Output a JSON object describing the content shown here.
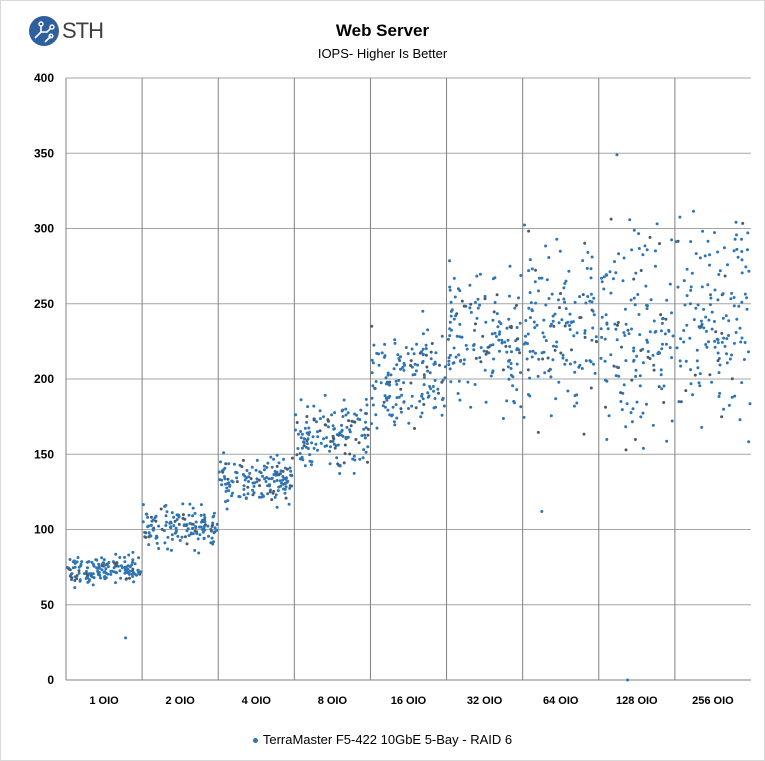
{
  "logo": {
    "text": "STH"
  },
  "chart_data": {
    "type": "scatter",
    "title": "Web Server",
    "subtitle": "IOPS- Higher Is Better",
    "xlabel": "",
    "ylabel": "",
    "ylim": [
      0,
      400
    ],
    "yticks": [
      0,
      50,
      100,
      150,
      200,
      250,
      300,
      350,
      400
    ],
    "categories": [
      "1 OIO",
      "2 OIO",
      "4 OIO",
      "8 OIO",
      "16 OIO",
      "32 OIO",
      "64 OIO",
      "128 OIO",
      "256 OIO"
    ],
    "grid": true,
    "legend_position": "bottom",
    "series": [
      {
        "name": "TerraMaster F5-422 10GbE 5-Bay - RAID 6",
        "color": "#2e75b6",
        "points_per_group": 150,
        "groups": [
          {
            "category": "1 OIO",
            "mean": 73,
            "sd": 5,
            "min": 56,
            "max": 85,
            "outliers": [
              28
            ]
          },
          {
            "category": "2 OIO",
            "mean": 102,
            "sd": 7,
            "min": 75,
            "max": 117,
            "outliers": []
          },
          {
            "category": "4 OIO",
            "mean": 132,
            "sd": 8,
            "min": 106,
            "max": 151,
            "outliers": []
          },
          {
            "category": "8 OIO",
            "mean": 162,
            "sd": 11,
            "min": 120,
            "max": 193,
            "outliers": []
          },
          {
            "category": "16 OIO",
            "mean": 201,
            "sd": 15,
            "min": 148,
            "max": 245,
            "outliers": []
          },
          {
            "category": "32 OIO",
            "mean": 228,
            "sd": 22,
            "min": 150,
            "max": 290,
            "outliers": []
          },
          {
            "category": "64 OIO",
            "mean": 236,
            "sd": 30,
            "min": 152,
            "max": 310,
            "outliers": [
              112
            ]
          },
          {
            "category": "128 OIO",
            "mean": 236,
            "sd": 35,
            "min": 150,
            "max": 330,
            "outliers": [
              349,
              0
            ]
          },
          {
            "category": "256 OIO",
            "mean": 237,
            "sd": 36,
            "min": 118,
            "max": 341,
            "outliers": []
          }
        ]
      }
    ]
  }
}
